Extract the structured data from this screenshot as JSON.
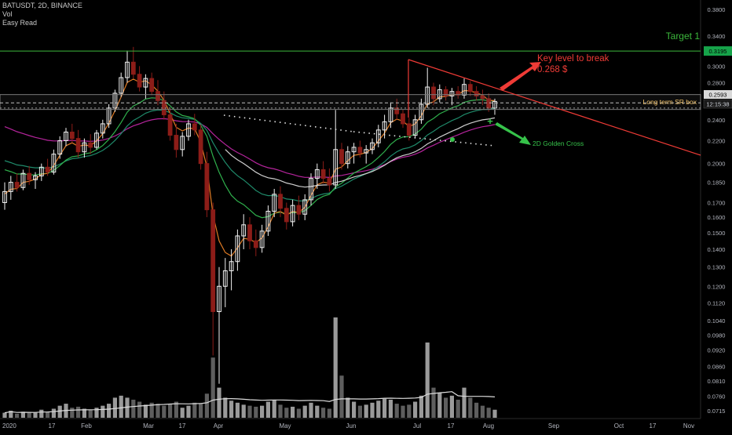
{
  "header": {
    "symbol_line": "BATUSDT, 2D, BINANCE",
    "vol_label": "Vol",
    "script_label": "Easy Read"
  },
  "colors": {
    "background": "#000000",
    "candle_up": "#f2f2f2",
    "candle_down": "#8c1d18",
    "ema_fast": "#e07b24",
    "ema_mid": "#2fb04c",
    "ema_long": "#1f8a6a",
    "ema_slow": "#b5249c",
    "ema_white": "#cfcfcf",
    "target_line": "#3cb83c",
    "trend_line": "#ef3b36",
    "golden_cross": "#36c24a",
    "volume": "#8a8a8a"
  },
  "chart_data": {
    "type": "candlestick",
    "title": "BATUSDT, 2D, BINANCE",
    "y_scale": "log",
    "ylim": [
      0.071,
      0.38
    ],
    "y_ticks": [
      "0.3800",
      "0.3400",
      "0.3000",
      "0.2800",
      "0.2400",
      "0.2200",
      "0.2000",
      "0.1850",
      "0.1700",
      "0.1600",
      "0.1500",
      "0.1400",
      "0.1300",
      "0.1200",
      "0.1120",
      "0.1040",
      "0.0980",
      "0.0920",
      "0.0860",
      "0.0810",
      "0.0760",
      "0.0715"
    ],
    "x_ticks": [
      "2020",
      "17",
      "Feb",
      "Mar",
      "17",
      "Apr",
      "May",
      "Jun",
      "Jul",
      "17",
      "Aug",
      "Sep",
      "Oct",
      "17",
      "Nov"
    ],
    "price_label": "0.2593",
    "countdown_label": "12:15:38",
    "target_price_label": "0.3195",
    "annotations": {
      "target": "Target 1",
      "key_level_line1": "Key level to break",
      "key_level_line2": "0.268 $",
      "sr_box": "Long term SR box",
      "golden_cross": "2D Golden Cross"
    },
    "levels": {
      "target_1": 0.3195,
      "key_level": 0.268,
      "sr_box_top": 0.2665,
      "sr_box_bottom": 0.2505,
      "current_price": 0.2593
    },
    "candles_ohlc": [
      [
        0.17,
        0.185,
        0.165,
        0.178
      ],
      [
        0.178,
        0.19,
        0.172,
        0.185
      ],
      [
        0.185,
        0.192,
        0.178,
        0.181
      ],
      [
        0.181,
        0.195,
        0.179,
        0.192
      ],
      [
        0.192,
        0.198,
        0.183,
        0.187
      ],
      [
        0.187,
        0.193,
        0.18,
        0.19
      ],
      [
        0.19,
        0.2,
        0.186,
        0.197
      ],
      [
        0.197,
        0.204,
        0.19,
        0.193
      ],
      [
        0.193,
        0.212,
        0.191,
        0.208
      ],
      [
        0.208,
        0.224,
        0.204,
        0.22
      ],
      [
        0.22,
        0.232,
        0.215,
        0.228
      ],
      [
        0.228,
        0.236,
        0.218,
        0.222
      ],
      [
        0.222,
        0.23,
        0.205,
        0.21
      ],
      [
        0.21,
        0.222,
        0.205,
        0.218
      ],
      [
        0.218,
        0.226,
        0.208,
        0.214
      ],
      [
        0.214,
        0.23,
        0.212,
        0.227
      ],
      [
        0.227,
        0.24,
        0.222,
        0.236
      ],
      [
        0.236,
        0.256,
        0.232,
        0.252
      ],
      [
        0.252,
        0.272,
        0.248,
        0.268
      ],
      [
        0.268,
        0.292,
        0.264,
        0.286
      ],
      [
        0.286,
        0.32,
        0.28,
        0.305
      ],
      [
        0.305,
        0.325,
        0.285,
        0.29
      ],
      [
        0.29,
        0.3,
        0.27,
        0.275
      ],
      [
        0.275,
        0.29,
        0.262,
        0.285
      ],
      [
        0.285,
        0.292,
        0.266,
        0.27
      ],
      [
        0.27,
        0.283,
        0.255,
        0.26
      ],
      [
        0.26,
        0.27,
        0.24,
        0.245
      ],
      [
        0.245,
        0.252,
        0.22,
        0.225
      ],
      [
        0.225,
        0.236,
        0.205,
        0.212
      ],
      [
        0.212,
        0.228,
        0.206,
        0.224
      ],
      [
        0.224,
        0.24,
        0.22,
        0.236
      ],
      [
        0.236,
        0.246,
        0.225,
        0.23
      ],
      [
        0.23,
        0.235,
        0.195,
        0.2
      ],
      [
        0.2,
        0.21,
        0.16,
        0.165
      ],
      [
        0.165,
        0.17,
        0.09,
        0.108
      ],
      [
        0.108,
        0.13,
        0.08,
        0.12
      ],
      [
        0.12,
        0.135,
        0.11,
        0.128
      ],
      [
        0.128,
        0.14,
        0.118,
        0.133
      ],
      [
        0.133,
        0.152,
        0.128,
        0.148
      ],
      [
        0.148,
        0.162,
        0.14,
        0.155
      ],
      [
        0.155,
        0.16,
        0.14,
        0.145
      ],
      [
        0.145,
        0.152,
        0.136,
        0.141
      ],
      [
        0.141,
        0.155,
        0.138,
        0.151
      ],
      [
        0.151,
        0.168,
        0.148,
        0.164
      ],
      [
        0.164,
        0.18,
        0.16,
        0.176
      ],
      [
        0.176,
        0.182,
        0.16,
        0.166
      ],
      [
        0.166,
        0.17,
        0.152,
        0.157
      ],
      [
        0.157,
        0.172,
        0.154,
        0.168
      ],
      [
        0.168,
        0.175,
        0.158,
        0.162
      ],
      [
        0.162,
        0.176,
        0.158,
        0.172
      ],
      [
        0.172,
        0.192,
        0.168,
        0.188
      ],
      [
        0.188,
        0.2,
        0.18,
        0.195
      ],
      [
        0.195,
        0.202,
        0.184,
        0.188
      ],
      [
        0.188,
        0.196,
        0.178,
        0.183
      ],
      [
        0.183,
        0.25,
        0.18,
        0.212
      ],
      [
        0.212,
        0.218,
        0.195,
        0.2
      ],
      [
        0.2,
        0.215,
        0.196,
        0.21
      ],
      [
        0.21,
        0.218,
        0.2,
        0.214
      ],
      [
        0.214,
        0.22,
        0.205,
        0.209
      ],
      [
        0.209,
        0.216,
        0.2,
        0.212
      ],
      [
        0.212,
        0.222,
        0.208,
        0.218
      ],
      [
        0.218,
        0.235,
        0.214,
        0.23
      ],
      [
        0.23,
        0.245,
        0.222,
        0.238
      ],
      [
        0.238,
        0.258,
        0.232,
        0.252
      ],
      [
        0.252,
        0.262,
        0.24,
        0.246
      ],
      [
        0.246,
        0.25,
        0.232,
        0.236
      ],
      [
        0.236,
        0.242,
        0.22,
        0.225
      ],
      [
        0.225,
        0.245,
        0.222,
        0.24
      ],
      [
        0.24,
        0.262,
        0.236,
        0.256
      ],
      [
        0.256,
        0.298,
        0.252,
        0.275
      ],
      [
        0.275,
        0.28,
        0.255,
        0.262
      ],
      [
        0.262,
        0.278,
        0.258,
        0.272
      ],
      [
        0.272,
        0.276,
        0.26,
        0.265
      ],
      [
        0.265,
        0.274,
        0.255,
        0.27
      ],
      [
        0.27,
        0.276,
        0.262,
        0.266
      ],
      [
        0.266,
        0.285,
        0.262,
        0.278
      ],
      [
        0.278,
        0.282,
        0.265,
        0.27
      ],
      [
        0.27,
        0.276,
        0.26,
        0.265
      ],
      [
        0.265,
        0.272,
        0.255,
        0.262
      ],
      [
        0.262,
        0.268,
        0.248,
        0.252
      ],
      [
        0.252,
        0.262,
        0.245,
        0.259
      ]
    ],
    "volume_relative": [
      0.05,
      0.07,
      0.04,
      0.06,
      0.05,
      0.05,
      0.08,
      0.06,
      0.09,
      0.12,
      0.14,
      0.1,
      0.11,
      0.09,
      0.08,
      0.1,
      0.12,
      0.14,
      0.2,
      0.22,
      0.2,
      0.18,
      0.16,
      0.13,
      0.15,
      0.14,
      0.12,
      0.14,
      0.16,
      0.1,
      0.12,
      0.15,
      0.14,
      0.24,
      0.6,
      0.3,
      0.2,
      0.17,
      0.15,
      0.13,
      0.12,
      0.11,
      0.12,
      0.16,
      0.18,
      0.13,
      0.1,
      0.11,
      0.09,
      0.12,
      0.15,
      0.12,
      0.1,
      0.09,
      1.0,
      0.42,
      0.2,
      0.16,
      0.12,
      0.13,
      0.15,
      0.17,
      0.19,
      0.18,
      0.14,
      0.12,
      0.13,
      0.16,
      0.22,
      0.75,
      0.3,
      0.25,
      0.2,
      0.22,
      0.18,
      0.3,
      0.2,
      0.15,
      0.12,
      0.1,
      0.08
    ]
  }
}
